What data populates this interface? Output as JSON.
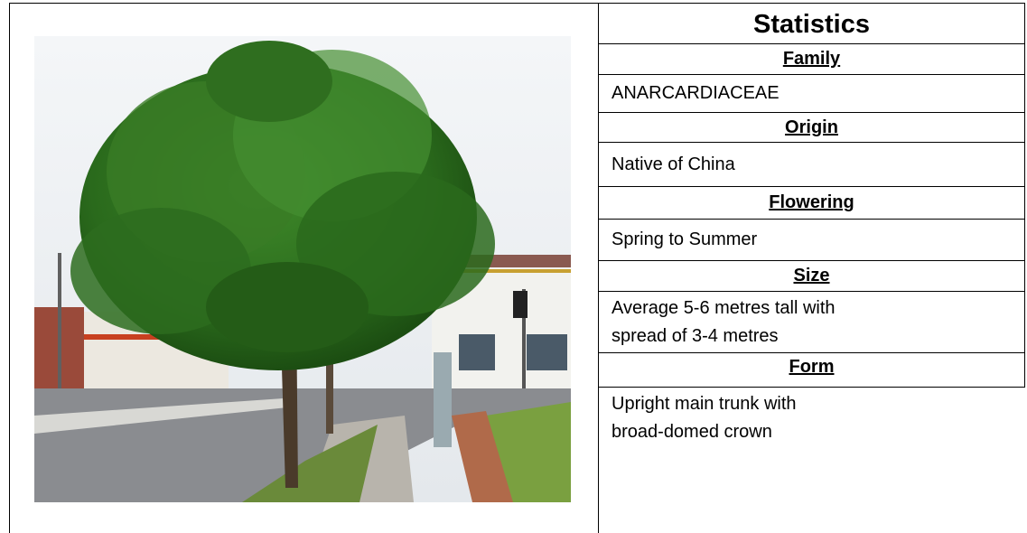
{
  "title": "Statistics",
  "sections": [
    {
      "heading": "Family",
      "text": "ANARCARDIACEAE"
    },
    {
      "heading": "Origin",
      "text": "Native of China"
    },
    {
      "heading": "Flowering",
      "text": "Spring to Summer"
    },
    {
      "heading": "Size",
      "text": "Average 5-6 metres tall with spread of 3-4 metres"
    },
    {
      "heading": "Form",
      "text": "Upright main trunk with broad-domed crown"
    }
  ]
}
